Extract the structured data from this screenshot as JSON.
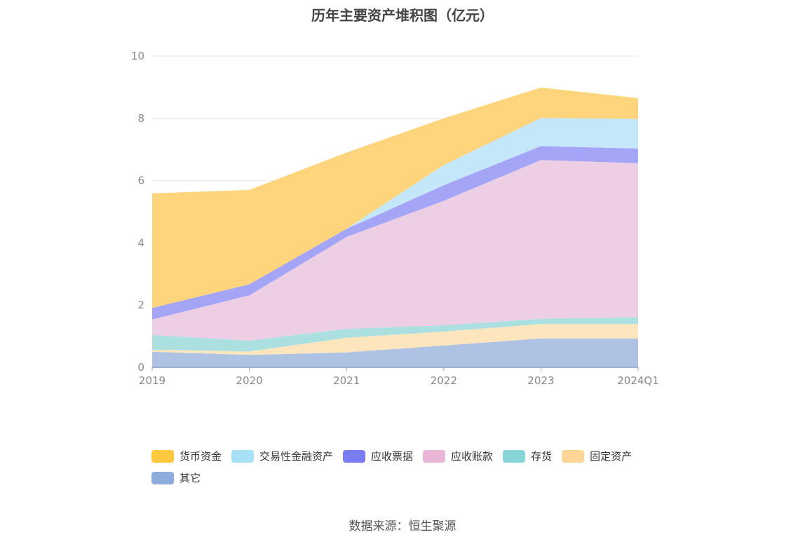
{
  "title": "历年主要资产堆积图（亿元）",
  "source": "数据来源：恒生聚源",
  "chart_data": {
    "type": "area",
    "stacked": true,
    "categories": [
      "2019",
      "2020",
      "2021",
      "2022",
      "2023",
      "2024Q1"
    ],
    "y_ticks": [
      "0",
      "2",
      "4",
      "6",
      "8",
      "10"
    ],
    "ylim": [
      0,
      10
    ],
    "grid": true,
    "legend_position": "bottom-left",
    "series": [
      {
        "name": "其它",
        "color": "#aec2e4",
        "legend_color": "#8eacdb",
        "values": [
          0.5,
          0.4,
          0.48,
          0.7,
          0.93,
          0.93
        ]
      },
      {
        "name": "固定资产",
        "color": "#fde5bd",
        "legend_color": "#fdd597",
        "values": [
          0.07,
          0.11,
          0.47,
          0.45,
          0.46,
          0.46
        ]
      },
      {
        "name": "存货",
        "color": "#acdfe0",
        "legend_color": "#88d5d8",
        "values": [
          0.47,
          0.35,
          0.29,
          0.2,
          0.17,
          0.22
        ]
      },
      {
        "name": "应收账款",
        "color": "#eccfe5",
        "legend_color": "#e8b7d8",
        "values": [
          0.5,
          1.45,
          2.95,
          4.0,
          5.1,
          4.95
        ]
      },
      {
        "name": "应收票据",
        "color": "#a4a5f7",
        "legend_color": "#7a7df1",
        "values": [
          0.37,
          0.36,
          0.26,
          0.5,
          0.45,
          0.47
        ]
      },
      {
        "name": "交易性金融资产",
        "color": "#c4e8f9",
        "legend_color": "#a8e0f8",
        "values": [
          0.0,
          0.0,
          0.0,
          0.65,
          0.9,
          0.95
        ]
      },
      {
        "name": "货币资金",
        "color": "#fed57d",
        "legend_color": "#fdc93e",
        "values": [
          3.68,
          3.03,
          2.45,
          1.5,
          0.98,
          0.67
        ]
      }
    ]
  }
}
